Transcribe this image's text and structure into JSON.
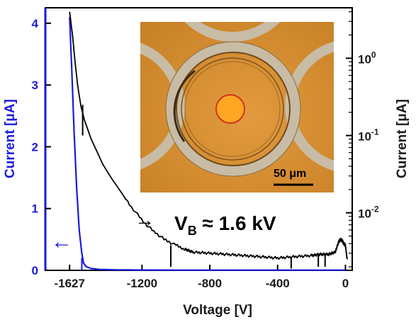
{
  "chart_data": {
    "type": "line",
    "xlabel": "Voltage [V]",
    "ylabel_left": "Current [μA]",
    "ylabel_right": "Current [μA]",
    "x_ticks": [
      "-1627",
      "-1200",
      "-800",
      "-400",
      "0"
    ],
    "x_tick_values": [
      -1627,
      -1200,
      -800,
      -400,
      0
    ],
    "y_left_ticks": [
      "0",
      "1",
      "2",
      "3",
      "4"
    ],
    "y_left_tick_values": [
      0,
      1,
      2,
      3,
      4
    ],
    "y_right_ticks": [
      {
        "base": "10",
        "exp": "-2",
        "value": 0.01
      },
      {
        "base": "10",
        "exp": "-1",
        "value": 0.1
      },
      {
        "base": "10",
        "exp": "0",
        "value": 1
      }
    ],
    "xlim": [
      -1770,
      40
    ],
    "ylim_left": [
      0,
      4.25
    ],
    "ylim_right_log": [
      0.0018,
      4.5
    ],
    "grid": false,
    "series": [
      {
        "axis": "left",
        "scale": "linear",
        "color": "#1a1adb",
        "points": [
          [
            -1627,
            4.1
          ],
          [
            -1615,
            3.3
          ],
          [
            -1600,
            2.2
          ],
          [
            -1585,
            1.3
          ],
          [
            -1570,
            0.65
          ],
          [
            -1555,
            0.28
          ],
          [
            -1545,
            0.12
          ],
          [
            -1530,
            0.06
          ],
          [
            -1500,
            0.03
          ],
          [
            -1450,
            0.015
          ],
          [
            -1350,
            0.008
          ],
          [
            -1200,
            0.005
          ],
          [
            -800,
            0.003
          ],
          [
            -400,
            0.003
          ],
          [
            0,
            0.003
          ]
        ],
        "spikes": [
          {
            "x": -1555,
            "value": 0.2
          }
        ]
      },
      {
        "axis": "right",
        "scale": "log",
        "color": "#000000",
        "points": [
          [
            -1627,
            4.0
          ],
          [
            -1610,
            2.0
          ],
          [
            -1595,
            0.9
          ],
          [
            -1580,
            0.45
          ],
          [
            -1560,
            0.24
          ],
          [
            -1540,
            0.16
          ],
          [
            -1520,
            0.12
          ],
          [
            -1500,
            0.09
          ],
          [
            -1470,
            0.065
          ],
          [
            -1430,
            0.042
          ],
          [
            -1380,
            0.028
          ],
          [
            -1320,
            0.018
          ],
          [
            -1250,
            0.011
          ],
          [
            -1180,
            0.0072
          ],
          [
            -1120,
            0.0055
          ],
          [
            -1060,
            0.0044
          ],
          [
            -1000,
            0.0038
          ],
          [
            -950,
            0.0034
          ],
          [
            -900,
            0.0031
          ],
          [
            -800,
            0.003
          ],
          [
            -700,
            0.0029
          ],
          [
            -600,
            0.0028
          ],
          [
            -500,
            0.0027
          ],
          [
            -400,
            0.0026
          ],
          [
            -300,
            0.0027
          ],
          [
            -200,
            0.0028
          ],
          [
            -150,
            0.0029
          ],
          [
            -100,
            0.0029
          ],
          [
            -60,
            0.0031
          ],
          [
            -40,
            0.0042
          ],
          [
            -30,
            0.0045
          ],
          [
            -20,
            0.0044
          ],
          [
            -10,
            0.004
          ],
          [
            0,
            0.0038
          ],
          [
            10,
            0.0025
          ]
        ],
        "spikes": [
          {
            "x": -1550,
            "low": 0.1,
            "high": 0.25
          },
          {
            "x": -1030,
            "low": 0.002,
            "high": 0.0038
          },
          {
            "x": -320,
            "low": 0.0019,
            "high": 0.0027
          },
          {
            "x": -160,
            "low": 0.002,
            "high": 0.0028
          },
          {
            "x": -120,
            "low": 0.002,
            "high": 0.0029
          }
        ]
      }
    ],
    "annotations": {
      "left_arrow": "←",
      "right_arrow": "→",
      "vb_label": "V",
      "vb_subscript": "B",
      "vb_value": " ≈ 1.6 kV",
      "inset_scale_label": "50 μm"
    }
  },
  "colors": {
    "left_axis": "#1a1adb",
    "right_axis": "#000000",
    "inset_background": "#d08c2c",
    "inset_ring": "#c7b9a4",
    "inset_dot": "#ffa020"
  }
}
